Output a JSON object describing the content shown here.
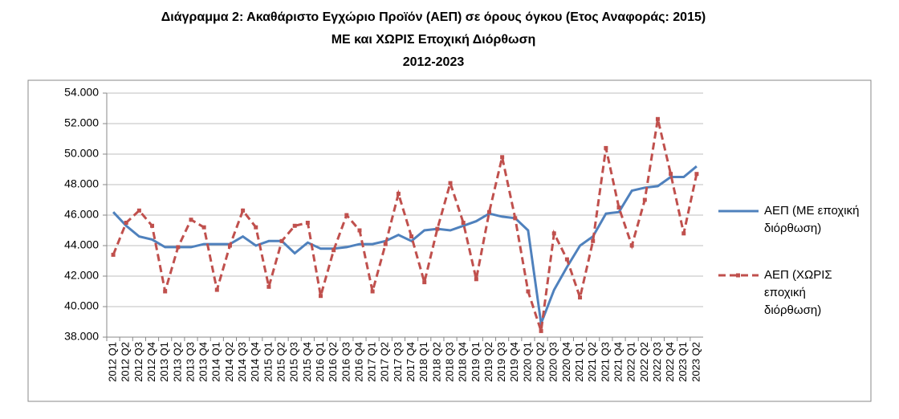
{
  "chart_data": {
    "type": "line",
    "title": "Διάγραμμα 2: Ακαθάριστο Εγχώριο Προϊόν (ΑΕΠ) σε όρους όγκου (Ετος Αναφοράς: 2015)",
    "subtitle": "ΜΕ και ΧΩΡΙΣ Εποχική Διόρθωση",
    "period": "2012-2023",
    "categories": [
      "2012 Q1",
      "2012 Q2",
      "2012 Q3",
      "2012 Q4",
      "2013 Q1",
      "2013 Q2",
      "2013 Q3",
      "2013 Q4",
      "2014 Q1",
      "2014 Q2",
      "2014 Q3",
      "2014 Q4",
      "2015 Q1",
      "2015 Q2",
      "2015 Q3",
      "2015 Q4",
      "2016 Q1",
      "2016 Q2",
      "2016 Q3",
      "2016 Q4",
      "2017 Q1",
      "2017 Q2",
      "2017 Q3",
      "2017 Q4",
      "2018 Q1",
      "2018 Q2",
      "2018 Q3",
      "2018 Q4",
      "2019 Q1",
      "2019 Q2",
      "2019 Q3",
      "2019 Q4",
      "2020 Q1",
      "2020 Q2",
      "2020 Q3",
      "2020 Q4",
      "2021 Q1",
      "2021 Q2",
      "2021 Q3",
      "2021 Q4",
      "2022 Q1",
      "2022 Q2",
      "2022 Q3",
      "2022 Q4",
      "2023 Q1",
      "2023 Q2"
    ],
    "series": [
      {
        "name": "ΑΕΠ (ΜΕ εποχική διόρθωση)",
        "color": "#4f81bd",
        "dashed": false,
        "values": [
          46200,
          45300,
          44600,
          44400,
          43900,
          43900,
          43900,
          44100,
          44100,
          44100,
          44600,
          44000,
          44300,
          44300,
          43500,
          44200,
          43800,
          43800,
          43900,
          44100,
          44100,
          44300,
          44700,
          44300,
          45000,
          45100,
          45000,
          45300,
          45600,
          46100,
          45900,
          45800,
          45000,
          38900,
          41100,
          42600,
          44000,
          44600,
          46100,
          46200,
          47600,
          47800,
          47900,
          48500,
          48500,
          49200
        ]
      },
      {
        "name": "ΑΕΠ (ΧΩΡΙΣ εποχική διόρθωση)",
        "color": "#c0504d",
        "dashed": true,
        "values": [
          43400,
          45500,
          46300,
          45300,
          41000,
          43900,
          45700,
          45200,
          41100,
          44000,
          46300,
          45200,
          41300,
          44300,
          45300,
          45500,
          40700,
          43700,
          46000,
          45000,
          41000,
          44100,
          47400,
          44600,
          41600,
          45100,
          48100,
          45500,
          41800,
          46200,
          49800,
          45800,
          41000,
          38400,
          44800,
          43100,
          40600,
          44300,
          50400,
          46500,
          44000,
          47000,
          52300,
          48700,
          44800,
          48700
        ]
      }
    ],
    "ylim": [
      38000,
      54000
    ],
    "yticks": [
      {
        "value": 38000,
        "label": "38.000"
      },
      {
        "value": 40000,
        "label": "40.000"
      },
      {
        "value": 42000,
        "label": "42.000"
      },
      {
        "value": 44000,
        "label": "44.000"
      },
      {
        "value": 46000,
        "label": "46.000"
      },
      {
        "value": 48000,
        "label": "48.000"
      },
      {
        "value": 50000,
        "label": "50.000"
      },
      {
        "value": 52000,
        "label": "52.000"
      },
      {
        "value": 54000,
        "label": "54.000"
      }
    ],
    "grid": true
  }
}
